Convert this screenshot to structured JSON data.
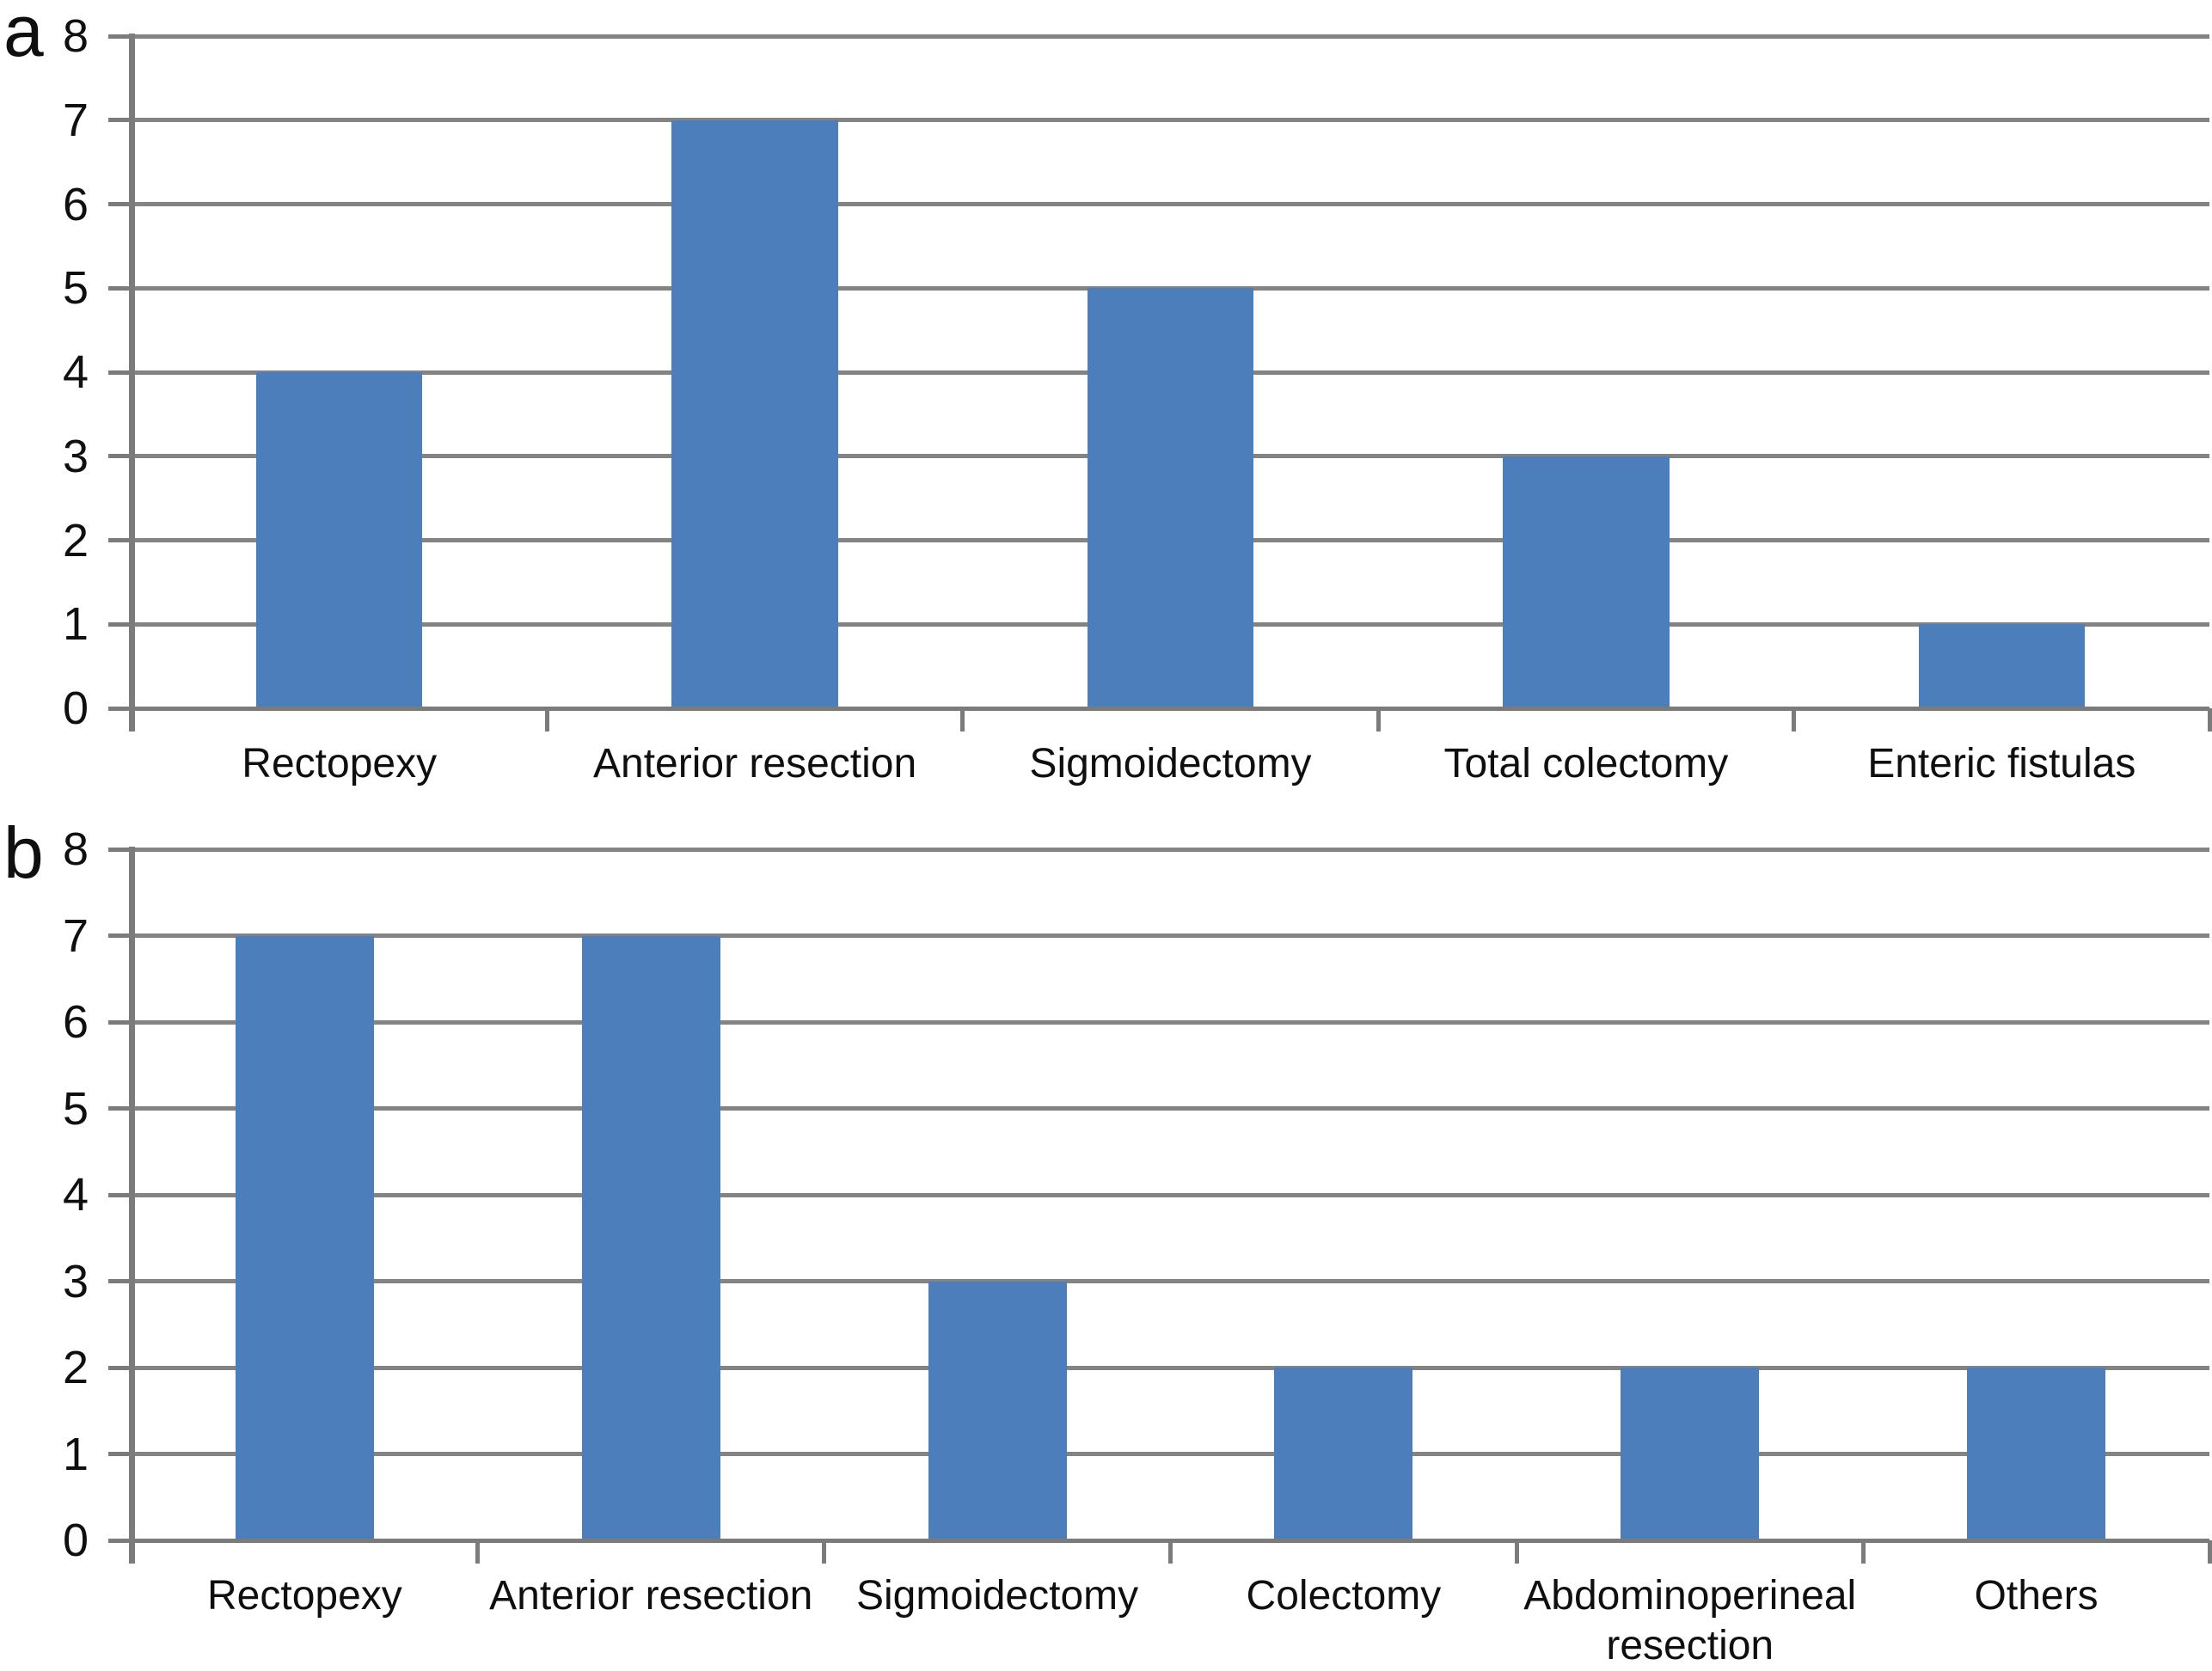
{
  "figure": {
    "background": "#ffffff",
    "bar_color": "#4d7ebc",
    "gridline_color": "#838383",
    "axis_color": "#7b7b7b",
    "text_color": "#0f0f0f"
  },
  "chart_data": [
    {
      "type": "bar",
      "panel_label": "a",
      "title": "",
      "xlabel": "",
      "ylabel": "",
      "categories": [
        "Rectopexy",
        "Anterior resection",
        "Sigmoidectomy",
        "Total colectomy",
        "Enteric fistulas"
      ],
      "values": [
        4,
        7,
        5,
        3,
        1
      ],
      "ylim": [
        0,
        8
      ],
      "yticks": [
        0,
        1,
        2,
        3,
        4,
        5,
        6,
        7,
        8
      ],
      "grid": true,
      "legend": false,
      "bar_color": "#4d7ebc"
    },
    {
      "type": "bar",
      "panel_label": "b",
      "title": "",
      "xlabel": "",
      "ylabel": "",
      "categories": [
        "Rectopexy",
        "Anterior resection",
        "Sigmoidectomy",
        "Colectomy",
        "Abdominoperineal resection",
        "Others"
      ],
      "values": [
        7,
        7,
        3,
        2,
        2,
        2
      ],
      "ylim": [
        0,
        8
      ],
      "yticks": [
        0,
        1,
        2,
        3,
        4,
        5,
        6,
        7,
        8
      ],
      "grid": true,
      "legend": false,
      "bar_color": "#4d7ebc"
    }
  ]
}
